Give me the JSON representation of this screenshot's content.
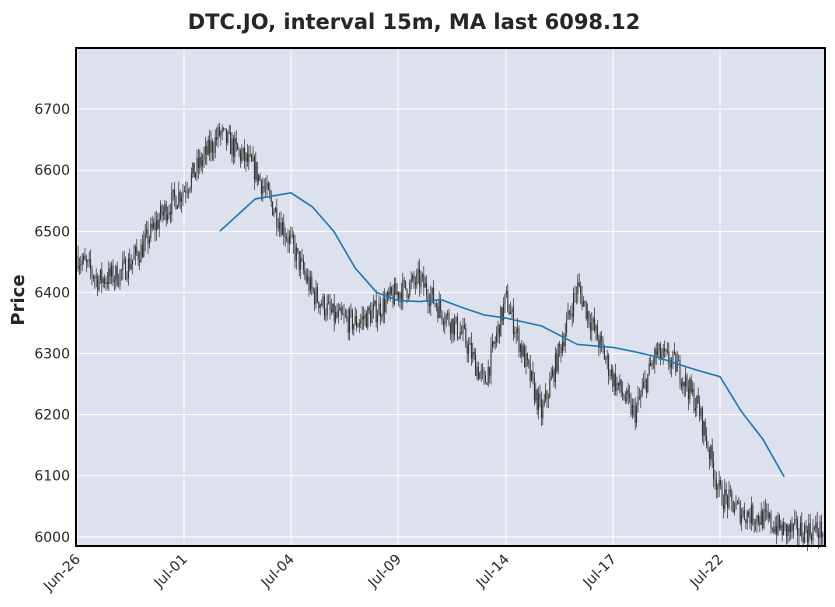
{
  "chart_data": {
    "type": "candlestick",
    "title": "DTC.JO, interval 15m, MA last 6098.12",
    "xlabel": "",
    "ylabel": "Price",
    "ylim": [
      5985,
      6800
    ],
    "yticks": [
      6000,
      6100,
      6200,
      6300,
      6400,
      6500,
      6600,
      6700
    ],
    "xticks": [
      "Jun-26",
      "Jul-01",
      "Jul-04",
      "Jul-09",
      "Jul-14",
      "Jul-17",
      "Jul-22"
    ],
    "grid": true,
    "background": "#dce1ed",
    "colors": {
      "candle": "#2b2b2b",
      "ma": "#1f77b4",
      "grid": "#ffffff",
      "frame": "#000000"
    },
    "price_path": [
      {
        "t": "Jun-26",
        "price": 6460
      },
      {
        "t": "Jun-27",
        "price": 6420
      },
      {
        "t": "Jun-28",
        "price": 6430
      },
      {
        "t": "Jun-29",
        "price": 6470
      },
      {
        "t": "Jun-30",
        "price": 6530
      },
      {
        "t": "Jul-01",
        "price": 6570
      },
      {
        "t": "Jul-02",
        "price": 6660
      },
      {
        "t": "Jul-03",
        "price": 6600
      },
      {
        "t": "Jul-04",
        "price": 6480
      },
      {
        "t": "Jul-05",
        "price": 6400
      },
      {
        "t": "Jul-06",
        "price": 6360
      },
      {
        "t": "Jul-07",
        "price": 6350
      },
      {
        "t": "Jul-08",
        "price": 6370
      },
      {
        "t": "Jul-09",
        "price": 6400
      },
      {
        "t": "Jul-10",
        "price": 6420
      },
      {
        "t": "Jul-11",
        "price": 6370
      },
      {
        "t": "Jul-12",
        "price": 6330
      },
      {
        "t": "Jul-13",
        "price": 6250
      },
      {
        "t": "Jul-14",
        "price": 6390
      },
      {
        "t": "Jul-15",
        "price": 6200
      },
      {
        "t": "Jul-16",
        "price": 6410
      },
      {
        "t": "Jul-17",
        "price": 6260
      },
      {
        "t": "Jul-18",
        "price": 6200
      },
      {
        "t": "Jul-19",
        "price": 6300
      },
      {
        "t": "Jul-20",
        "price": 6280
      },
      {
        "t": "Jul-21",
        "price": 6210
      },
      {
        "t": "Jul-22",
        "price": 6070
      },
      {
        "t": "Jul-23",
        "price": 6040
      },
      {
        "t": "Jul-24",
        "price": 6030
      },
      {
        "t": "Jul-25",
        "price": 6010
      }
    ],
    "ma_series": {
      "name": "MA",
      "points": [
        {
          "t": "Jul-02",
          "value": 6500
        },
        {
          "t": "Jul-03",
          "value": 6553
        },
        {
          "t": "Jul-04",
          "value": 6563
        },
        {
          "t": "Jul-05",
          "value": 6540
        },
        {
          "t": "Jul-06",
          "value": 6500
        },
        {
          "t": "Jul-07",
          "value": 6440
        },
        {
          "t": "Jul-08",
          "value": 6400
        },
        {
          "t": "Jul-09",
          "value": 6387
        },
        {
          "t": "Jul-10",
          "value": 6385
        },
        {
          "t": "Jul-11",
          "value": 6388
        },
        {
          "t": "Jul-12",
          "value": 6375
        },
        {
          "t": "Jul-13",
          "value": 6363
        },
        {
          "t": "Jul-14",
          "value": 6358
        },
        {
          "t": "Jul-15",
          "value": 6345
        },
        {
          "t": "Jul-16",
          "value": 6315
        },
        {
          "t": "Jul-17",
          "value": 6310
        },
        {
          "t": "Jul-18",
          "value": 6303
        },
        {
          "t": "Jul-19",
          "value": 6295
        },
        {
          "t": "Jul-20",
          "value": 6283
        },
        {
          "t": "Jul-21",
          "value": 6272
        },
        {
          "t": "Jul-22",
          "value": 6262
        },
        {
          "t": "Jul-23",
          "value": 6205
        },
        {
          "t": "Jul-24",
          "value": 6160
        },
        {
          "t": "Jul-25",
          "value": 6098.12
        }
      ]
    }
  }
}
